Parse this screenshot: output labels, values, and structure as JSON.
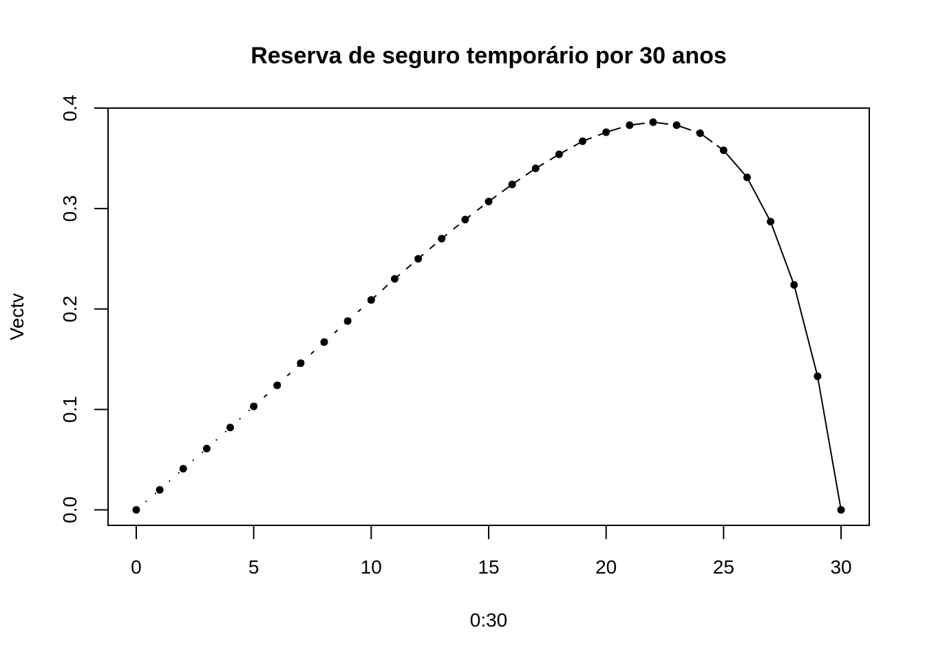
{
  "chart_data": {
    "type": "scatter",
    "title": "Reserva de seguro temporário por 30 anos",
    "xlabel": "0:30",
    "ylabel": "Vectv",
    "xlim": [
      -1.2,
      31.2
    ],
    "ylim": [
      -0.0154,
      0.4
    ],
    "x_ticks": [
      "0",
      "5",
      "10",
      "15",
      "20",
      "25",
      "30"
    ],
    "y_ticks": [
      "0.0",
      "0.1",
      "0.2",
      "0.3",
      "0.4"
    ],
    "grid": false,
    "legend": "none",
    "point_color": "#000000",
    "line_color": "#000000",
    "series": [
      {
        "x": [
          0,
          1,
          2,
          3,
          4,
          5,
          6,
          7,
          8,
          9,
          10,
          11,
          12,
          13,
          14,
          15,
          16,
          17,
          18,
          19,
          20,
          21,
          22,
          23,
          24,
          25,
          26,
          27,
          28,
          29,
          30
        ],
        "values": [
          0.0,
          0.02,
          0.041,
          0.061,
          0.082,
          0.103,
          0.124,
          0.146,
          0.167,
          0.188,
          0.209,
          0.23,
          0.25,
          0.27,
          0.289,
          0.307,
          0.324,
          0.34,
          0.354,
          0.367,
          0.376,
          0.383,
          0.386,
          0.383,
          0.375,
          0.358,
          0.331,
          0.287,
          0.224,
          0.133,
          0.0
        ]
      }
    ]
  }
}
